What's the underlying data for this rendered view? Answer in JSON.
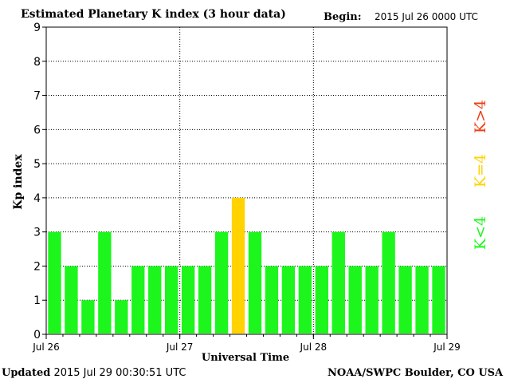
{
  "header": {
    "title": "Estimated Planetary K index (3 hour data)",
    "begin_label": "Begin:",
    "begin_value": "2015 Jul 26 0000 UTC"
  },
  "footer": {
    "updated_label": "Updated",
    "updated_value": "2015 Jul 29 00:30:51 UTC",
    "source": "NOAA/SWPC Boulder, CO USA"
  },
  "colors": {
    "below": "#1cf61c",
    "equal": "#ffd200",
    "above": "#f03c14"
  },
  "legend": {
    "below": "K<4",
    "equal": "K=4",
    "above": "K>4"
  },
  "chart_data": {
    "type": "bar",
    "title": "Estimated Planetary K index (3 hour data)",
    "xlabel": "Universal Time",
    "ylabel": "Kp index",
    "ylim": [
      0,
      9
    ],
    "yticks": [
      "0",
      "1",
      "2",
      "3",
      "4",
      "5",
      "6",
      "7",
      "8",
      "9"
    ],
    "xticks": [
      "Jul 26",
      "Jul 27",
      "Jul 28",
      "Jul 29"
    ],
    "grid": true,
    "legend_position": "right",
    "values": [
      3,
      2,
      1,
      3,
      1,
      2,
      2,
      2,
      2,
      2,
      3,
      4,
      3,
      2,
      2,
      2,
      2,
      3,
      2,
      2,
      3,
      2,
      2,
      2
    ]
  }
}
